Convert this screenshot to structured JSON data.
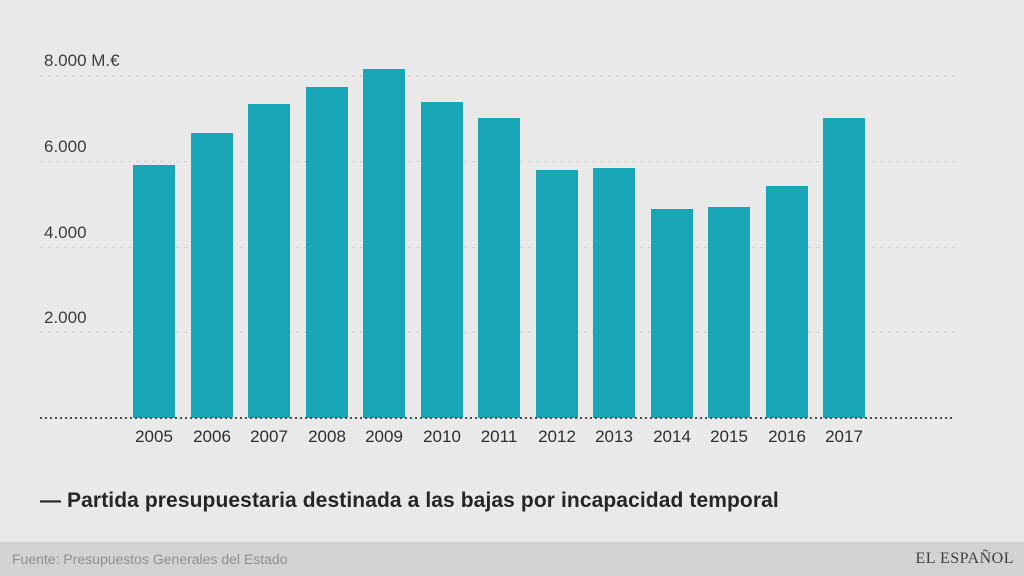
{
  "page": {
    "background": "#e9e9e9"
  },
  "chart_data": {
    "type": "bar",
    "title": "",
    "legend_label": "— Partida presupuestaria destinada a las bajas por incapacidad temporal",
    "categories": [
      "2005",
      "2006",
      "2007",
      "2008",
      "2009",
      "2010",
      "2011",
      "2012",
      "2013",
      "2014",
      "2015",
      "2016",
      "2017"
    ],
    "values": [
      5900,
      6650,
      7320,
      7720,
      8140,
      7370,
      7000,
      5780,
      5830,
      4870,
      4920,
      5410,
      7000
    ],
    "unit": "M.€",
    "xlabel": "",
    "ylabel": "",
    "ylim": [
      0,
      8600
    ],
    "y_ticks": [
      {
        "value": 2000,
        "label": "2.000"
      },
      {
        "value": 4000,
        "label": "4.000"
      },
      {
        "value": 6000,
        "label": "6.000"
      },
      {
        "value": 8000,
        "label": "8.000 M.€"
      }
    ],
    "grid": true,
    "legend_position": "below",
    "bar_color": "#19a7b7",
    "gridline_color": "#d2d2d2",
    "baseline_color": "#4f4f4f"
  },
  "footer": {
    "source": "Fuente: Presupuestos Generales del Estado",
    "brand": "EL ESPAÑOL"
  }
}
